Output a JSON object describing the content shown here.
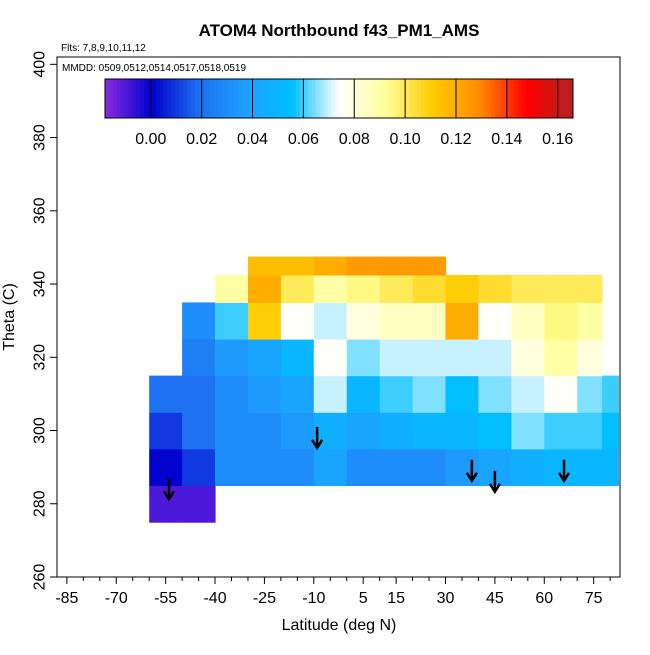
{
  "chart_data": {
    "type": "heatmap",
    "title": "ATOM4 Northbound f43_PM1_AMS",
    "notes": {
      "flights": "Flts: 7,8,9,10,11,12",
      "dates": "MMDD: 0509,0512,0514,0517,0518,0519"
    },
    "xlabel": "Latitude (deg N)",
    "ylabel": "Theta (C)",
    "xlim": [
      -88,
      83
    ],
    "ylim": [
      260,
      402
    ],
    "x_ticks": [
      -85,
      -70,
      -55,
      -40,
      -25,
      -10,
      5,
      15,
      30,
      45,
      60,
      75
    ],
    "x_tick_labels": [
      "-85",
      "-70",
      "-55",
      "-40",
      "-25",
      "-10",
      "5",
      "15",
      "30",
      "45",
      "60",
      "75"
    ],
    "y_ticks": [
      260,
      280,
      300,
      320,
      340,
      360,
      380,
      400
    ],
    "y_tick_labels": [
      "260",
      "280",
      "300",
      "320",
      "340",
      "360",
      "380",
      "400"
    ],
    "colorbar": {
      "range": [
        -0.018,
        0.166
      ],
      "ticks": [
        0.0,
        0.02,
        0.04,
        0.06,
        0.08,
        0.1,
        0.12,
        0.14,
        0.16
      ],
      "tick_labels": [
        "0.00",
        "0.02",
        "0.04",
        "0.06",
        "0.08",
        "0.10",
        "0.12",
        "0.14",
        "0.16"
      ],
      "colors": [
        "#8a2be2",
        "#0000cd",
        "#1e6ef0",
        "#1ea0ff",
        "#00bfff",
        "#ffffff",
        "#ffff99",
        "#ffcc00",
        "#ff8c00",
        "#ff0000",
        "#b22222"
      ]
    },
    "tropopause_arrows": [
      {
        "lat": -54,
        "theta": 287
      },
      {
        "lat": -9,
        "theta": 301
      },
      {
        "lat": 38,
        "theta": 292
      },
      {
        "lat": 45,
        "theta": 289
      },
      {
        "lat": 66,
        "theta": 292
      }
    ],
    "lat_grid": [
      -55,
      -45,
      -35,
      -25,
      -15,
      -5,
      5,
      15,
      25,
      35,
      45,
      55,
      65,
      75,
      80
    ],
    "theta_grid": [
      280,
      290,
      300,
      310,
      320,
      330,
      340,
      345
    ],
    "values": [
      [
        -0.01,
        -0.01,
        null,
        null,
        null,
        null,
        null,
        null,
        null,
        null,
        null,
        null,
        null,
        null,
        null
      ],
      [
        0.0,
        0.01,
        0.03,
        0.03,
        0.03,
        0.04,
        0.03,
        0.03,
        0.03,
        0.035,
        0.04,
        0.045,
        0.05,
        0.05,
        0.05
      ],
      [
        0.01,
        0.02,
        0.03,
        0.03,
        0.035,
        0.045,
        0.04,
        0.045,
        0.05,
        0.05,
        0.055,
        0.065,
        0.06,
        0.06,
        0.055
      ],
      [
        0.02,
        0.02,
        0.03,
        0.035,
        0.04,
        0.07,
        0.05,
        0.06,
        0.065,
        0.055,
        0.065,
        0.07,
        0.075,
        0.065,
        0.06
      ],
      [
        null,
        0.025,
        0.035,
        0.04,
        0.05,
        0.075,
        0.065,
        0.07,
        0.07,
        0.07,
        0.07,
        0.08,
        0.09,
        0.08,
        null
      ],
      [
        null,
        0.03,
        0.06,
        0.11,
        0.075,
        0.07,
        0.08,
        0.085,
        0.085,
        0.12,
        0.075,
        0.085,
        0.095,
        0.09,
        null
      ],
      [
        null,
        null,
        0.09,
        0.12,
        0.1,
        0.09,
        0.095,
        0.1,
        0.105,
        0.11,
        0.105,
        0.1,
        0.1,
        0.1,
        null
      ],
      [
        null,
        null,
        null,
        0.115,
        0.115,
        0.12,
        0.125,
        0.125,
        0.125,
        null,
        null,
        null,
        null,
        null,
        null
      ]
    ]
  }
}
